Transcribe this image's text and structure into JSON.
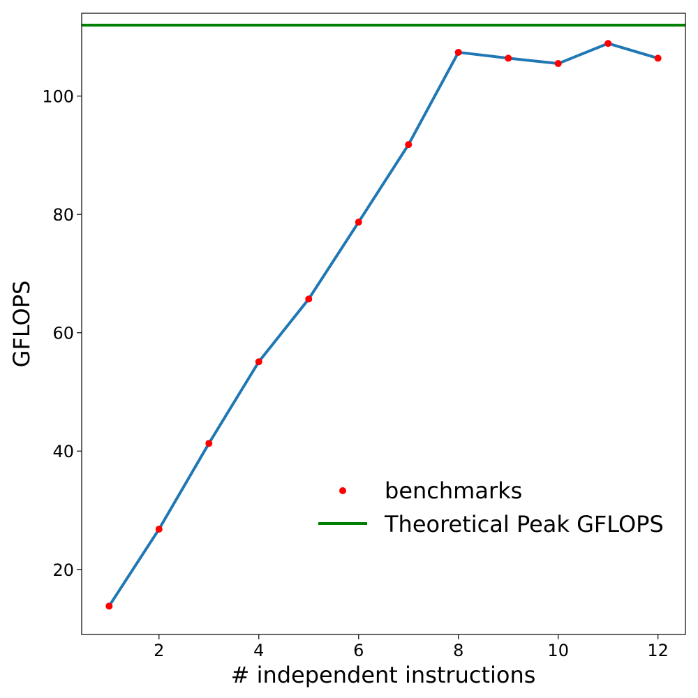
{
  "chart_data": {
    "type": "line",
    "title": "",
    "xlabel": "# independent instructions",
    "ylabel": "GFLOPS",
    "xlim": [
      0.45,
      12.55
    ],
    "ylim": [
      9,
      114
    ],
    "xticks": [
      2,
      4,
      6,
      8,
      10,
      12
    ],
    "xtick_labels": [
      "2",
      "4",
      "6",
      "8",
      "10",
      "12"
    ],
    "yticks": [
      20,
      40,
      60,
      80,
      100
    ],
    "ytick_labels": [
      "20",
      "40",
      "60",
      "80",
      "100"
    ],
    "grid": false,
    "legend_position": "lower-right",
    "series": [
      {
        "name": "benchmarks",
        "kind": "line+markers",
        "line_color": "#1f77b4",
        "marker_color": "#ff0000",
        "x": [
          1,
          2,
          3,
          4,
          5,
          6,
          7,
          8,
          9,
          10,
          11,
          12
        ],
        "y": [
          13.8,
          26.8,
          41.3,
          55.1,
          65.7,
          78.7,
          91.8,
          107.4,
          106.4,
          105.5,
          108.9,
          106.4
        ]
      },
      {
        "name": "Theoretical Peak GFLOPS",
        "kind": "hline",
        "line_color": "#008000",
        "y": 112.0
      }
    ],
    "legend": {
      "entries": [
        "benchmarks",
        "Theoretical Peak GFLOPS"
      ]
    }
  }
}
